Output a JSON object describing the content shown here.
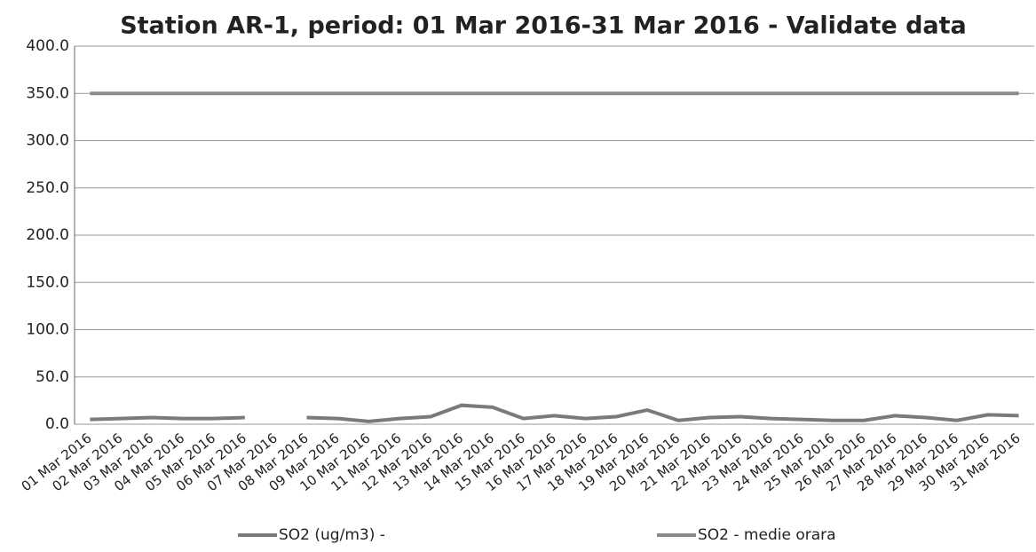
{
  "chart_data": {
    "type": "line",
    "title": "Station AR-1, period: 01 Mar 2016-31 Mar 2016 - Validate data",
    "categories": [
      "01 Mar 2016",
      "02 Mar 2016",
      "03 Mar 2016",
      "04 Mar 2016",
      "05 Mar 2016",
      "06 Mar 2016",
      "07 Mar 2016",
      "08 Mar 2016",
      "09 Mar 2016",
      "10 Mar 2016",
      "11 Mar 2016",
      "12 Mar 2016",
      "13 Mar 2016",
      "14 Mar 2016",
      "15 Mar 2016",
      "16 Mar 2016",
      "17 Mar 2016",
      "18 Mar 2016",
      "19 Mar 2016",
      "20 Mar 2016",
      "21 Mar 2016",
      "22 Mar 2016",
      "23 Mar 2016",
      "24 Mar 2016",
      "25 Mar 2016",
      "26 Mar 2016",
      "27 Mar 2016",
      "28 Mar 2016",
      "29 Mar 2016",
      "30 Mar 2016",
      "31 Mar 2016"
    ],
    "series": [
      {
        "name": "SO2 (ug/m3)  -",
        "color": "#7a7a7a",
        "values": [
          5,
          6,
          7,
          6,
          6,
          7,
          null,
          7,
          6,
          3,
          6,
          8,
          20,
          18,
          6,
          9,
          6,
          8,
          15,
          4,
          7,
          8,
          6,
          5,
          4,
          4,
          9,
          7,
          4,
          10,
          9
        ]
      },
      {
        "name": "SO2 - medie orara",
        "color": "#8a8a8a",
        "values": [
          350,
          350,
          350,
          350,
          350,
          350,
          350,
          350,
          350,
          350,
          350,
          350,
          350,
          350,
          350,
          350,
          350,
          350,
          350,
          350,
          350,
          350,
          350,
          350,
          350,
          350,
          350,
          350,
          350,
          350,
          350
        ]
      }
    ],
    "ylim": [
      0,
      400
    ],
    "yticks": [
      {
        "value": 0,
        "label": "0.0"
      },
      {
        "value": 50,
        "label": "50.0"
      },
      {
        "value": 100,
        "label": "100.0"
      },
      {
        "value": 150,
        "label": "150.0"
      },
      {
        "value": 200,
        "label": "200.0"
      },
      {
        "value": 250,
        "label": "250.0"
      },
      {
        "value": 300,
        "label": "300.0"
      },
      {
        "value": 350,
        "label": "350.0"
      },
      {
        "value": 400,
        "label": "400.0"
      }
    ],
    "grid": true
  }
}
